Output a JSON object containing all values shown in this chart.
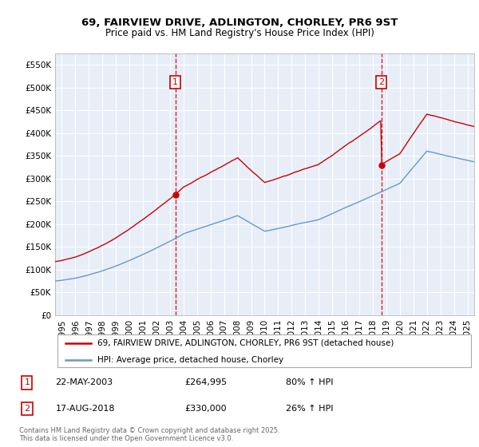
{
  "title_line1": "69, FAIRVIEW DRIVE, ADLINGTON, CHORLEY, PR6 9ST",
  "title_line2": "Price paid vs. HM Land Registry's House Price Index (HPI)",
  "yticks": [
    0,
    50000,
    100000,
    150000,
    200000,
    250000,
    300000,
    350000,
    400000,
    450000,
    500000,
    550000
  ],
  "ytick_labels": [
    "£0",
    "£50K",
    "£100K",
    "£150K",
    "£200K",
    "£250K",
    "£300K",
    "£350K",
    "£400K",
    "£450K",
    "£500K",
    "£550K"
  ],
  "ylim": [
    0,
    575000
  ],
  "xlim_start": 1994.5,
  "xlim_end": 2025.5,
  "hpi_color": "#6699cc",
  "price_color": "#cc0000",
  "bg_color": "#e8eef8",
  "grid_color": "#ffffff",
  "legend_label_price": "69, FAIRVIEW DRIVE, ADLINGTON, CHORLEY, PR6 9ST (detached house)",
  "legend_label_hpi": "HPI: Average price, detached house, Chorley",
  "sale1_date_num": 2003.39,
  "sale1_price": 264995,
  "sale1_label": "1",
  "sale1_date_str": "22-MAY-2003",
  "sale1_pct": "80% ↑ HPI",
  "sale2_date_num": 2018.63,
  "sale2_price": 330000,
  "sale2_label": "2",
  "sale2_date_str": "17-AUG-2018",
  "sale2_pct": "26% ↑ HPI",
  "footnote": "Contains HM Land Registry data © Crown copyright and database right 2025.\nThis data is licensed under the Open Government Licence v3.0.",
  "xtick_years": [
    1995,
    1996,
    1997,
    1998,
    1999,
    2000,
    2001,
    2002,
    2003,
    2004,
    2005,
    2006,
    2007,
    2008,
    2009,
    2010,
    2011,
    2012,
    2013,
    2014,
    2015,
    2016,
    2017,
    2018,
    2019,
    2020,
    2021,
    2022,
    2023,
    2024,
    2025
  ]
}
